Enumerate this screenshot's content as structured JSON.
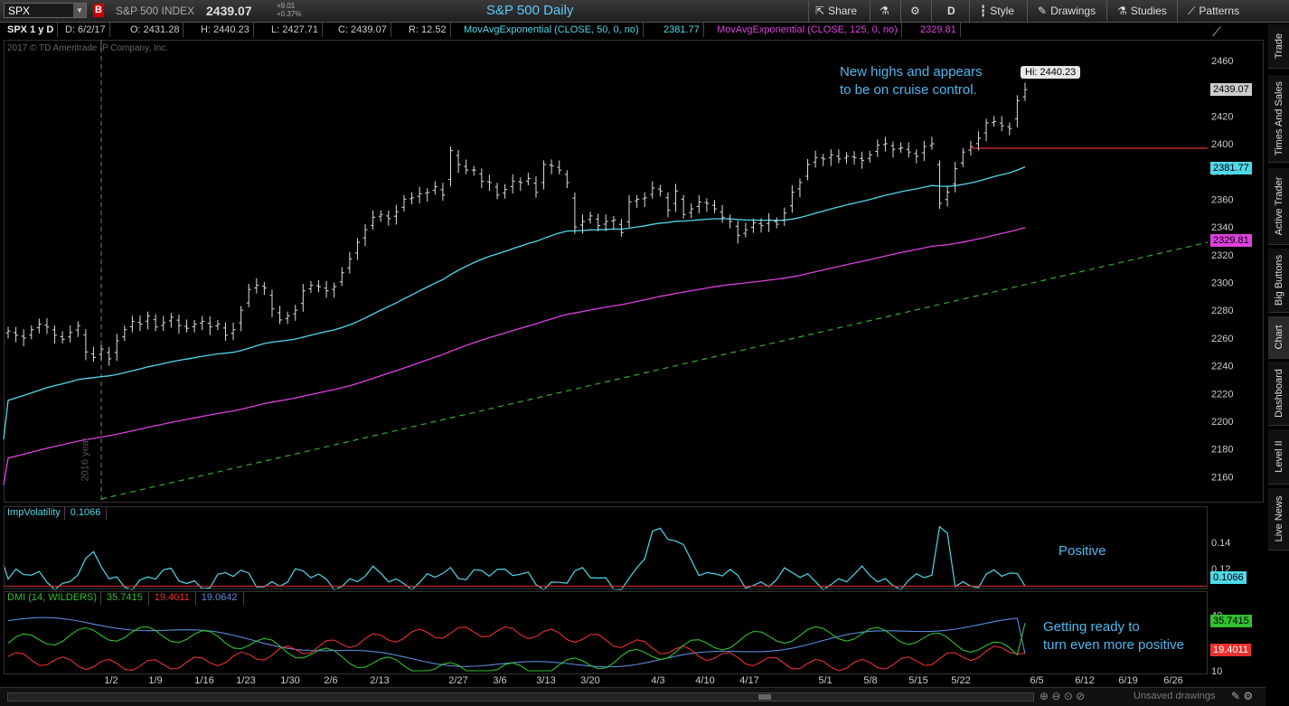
{
  "toolbar": {
    "symbol": "SPX",
    "symbol_badge": "B",
    "index_name": "S&P 500 INDEX",
    "last_price": "2439.07",
    "change_abs": "+9.01",
    "change_pct": "+0.37%",
    "title": "S&P 500 Daily",
    "share_label": "Share",
    "period_label": "D",
    "style_label": "Style",
    "drawings_label": "Drawings",
    "studies_label": "Studies",
    "patterns_label": "Patterns"
  },
  "infobar": {
    "spec": "SPX 1 y D",
    "date": "D: 6/2/17",
    "open": "O: 2431.28",
    "high": "H: 2440.23",
    "low": "L: 2427.71",
    "close": "C: 2439.07",
    "range": "R: 12.52",
    "ma50_label": "MovAvgExponential (CLOSE, 50, 0, no)",
    "ma50_value": "2381.77",
    "ma125_label": "MovAvgExponential (CLOSE, 125, 0, no)",
    "ma125_value": "2329.81"
  },
  "copyright": "2017 © TD Ameritrade IP Company, Inc.",
  "annotations": {
    "main_line1": "New highs and appears",
    "main_line2": "to be on cruise control.",
    "iv_note": "Positive",
    "dmi_line1": "Getting ready to",
    "dmi_line2": "turn even more positive"
  },
  "hi_label": "Hi: 2440.23",
  "year_label": "2016 year",
  "iv_panel": {
    "label": "ImpVolatility",
    "value": "0.1066"
  },
  "dmi_panel": {
    "label": "DMI (14, WILDERS)",
    "plus": "35.7415",
    "minus": "19.4011",
    "adx": "19.0642"
  },
  "bottom": {
    "unsaved": "Unsaved drawings"
  },
  "side_tabs": [
    "Trade",
    "Times And Sales",
    "Active Trader",
    "Big Buttons",
    "Chart",
    "Dashboard",
    "Level II",
    "Live News"
  ],
  "colors": {
    "ema50": "#4fd8e8",
    "ema125": "#e040e0",
    "trend": "#30b030",
    "plusDI": "#30c030",
    "minusDI": "#e83030",
    "adx": "#5a8ad8",
    "iv": "#4fd8e8",
    "annotation": "#4fb8f0"
  },
  "chart_data": [
    {
      "type": "ohlc",
      "title": "S&P 500 Daily",
      "y_ticks": [
        2160,
        2180,
        2200,
        2220,
        2240,
        2260,
        2280,
        2300,
        2320,
        2340,
        2360,
        2380,
        2400,
        2420,
        2440,
        2460
      ],
      "ylim": [
        2145,
        2470
      ],
      "x_ticks": [
        "1/2",
        "1/9",
        "1/16",
        "1/23",
        "1/30",
        "2/6",
        "2/13",
        "2/27",
        "3/6",
        "3/13",
        "3/20",
        "4/3",
        "4/10",
        "4/17",
        "5/1",
        "5/8",
        "5/15",
        "5/22",
        "6/5",
        "6/12",
        "6/19",
        "6/26"
      ],
      "price_label": "2439.07",
      "ema50_label": "2381.77",
      "ema125_label": "2329.81",
      "close": [
        2265,
        2262,
        2260,
        2266,
        2270,
        2268,
        2262,
        2259,
        2264,
        2269,
        2250,
        2246,
        2252,
        2245,
        2258,
        2266,
        2272,
        2270,
        2276,
        2268,
        2271,
        2275,
        2269,
        2267,
        2270,
        2272,
        2268,
        2270,
        2262,
        2266,
        2280,
        2295,
        2298,
        2296,
        2281,
        2273,
        2276,
        2280,
        2294,
        2298,
        2297,
        2294,
        2297,
        2307,
        2317,
        2329,
        2338,
        2347,
        2349,
        2346,
        2351,
        2360,
        2361,
        2364,
        2365,
        2369,
        2363,
        2395,
        2385,
        2381,
        2381,
        2373,
        2372,
        2363,
        2367,
        2373,
        2372,
        2375,
        2365,
        2385,
        2384,
        2381,
        2372,
        2340,
        2344,
        2348,
        2341,
        2344,
        2345,
        2336,
        2358,
        2360,
        2361,
        2368,
        2366,
        2352,
        2366,
        2349,
        2353,
        2358,
        2357,
        2353,
        2347,
        2344,
        2334,
        2338,
        2343,
        2341,
        2345,
        2342,
        2350,
        2365,
        2372,
        2385,
        2390,
        2389,
        2392,
        2389,
        2391,
        2390,
        2388,
        2392,
        2399,
        2400,
        2396,
        2397,
        2394,
        2391,
        2398,
        2400,
        2357,
        2365,
        2382,
        2394,
        2398,
        2404,
        2415,
        2416,
        2413,
        2411,
        2431,
        2439
      ]
    },
    {
      "type": "line",
      "name": "ImpVolatility",
      "y_ticks": [
        0.12,
        0.14
      ],
      "value_label": "0.1066"
    },
    {
      "type": "line",
      "name": "DMI (14, WILDERS)",
      "y_ticks": [
        10,
        20,
        40
      ],
      "series_labels": [
        "35.7415",
        "19.4011",
        "19.0642"
      ]
    }
  ]
}
